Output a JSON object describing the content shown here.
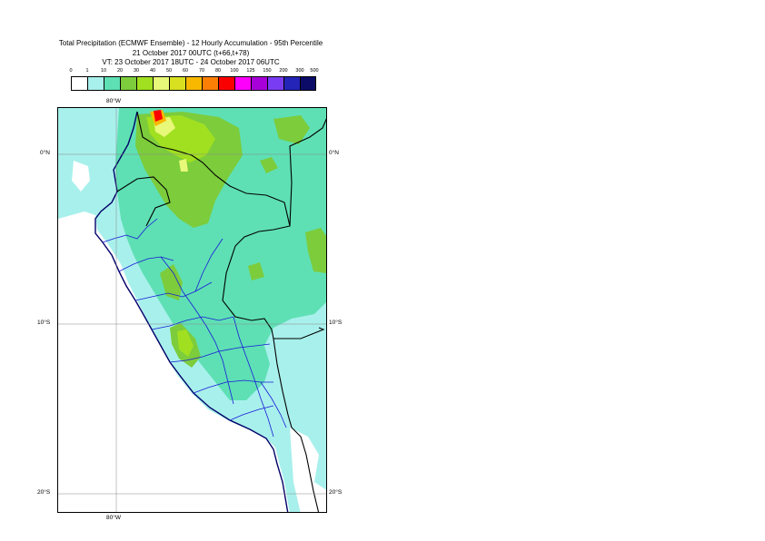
{
  "header": {
    "line1": "Total Precipitation (ECMWF Ensemble) - 12 Hourly Accumulation - 95th Percentile",
    "line2": "21 October 2017 00UTC (t+66,t+78)",
    "line3": "VT: 23 October 2017 18UTC - 24 October 2017 06UTC"
  },
  "colorbar": {
    "labels": [
      "0",
      "1",
      "10",
      "20",
      "30",
      "40",
      "50",
      "60",
      "70",
      "80",
      "100",
      "125",
      "150",
      "200",
      "300",
      "500"
    ],
    "colors": [
      "#ffffff",
      "#a8f0ec",
      "#5ee0b4",
      "#7ccc3c",
      "#a0e020",
      "#e8f878",
      "#d8e020",
      "#f8b800",
      "#fb7f05",
      "#fb0000",
      "#fc00fc",
      "#a800d8",
      "#7a3cf2",
      "#2424b8",
      "#0c0c68"
    ]
  },
  "map": {
    "lon_label_top": "80°W",
    "lon_label_bottom": "80°W",
    "lat_labels": [
      "0°N",
      "10°S",
      "20°S"
    ],
    "colors": {
      "ocean": "#ffffff",
      "light": "#a8f0ec",
      "medium": "#5ee0b4",
      "green": "#7ccc3c",
      "yellowgreen": "#a0e020",
      "pale": "#e8f878",
      "orange": "#f8b800",
      "red": "#fb0000",
      "coast": "#000068",
      "borders": "#000000",
      "regions": "#1a1ad8",
      "grid": "#888888"
    }
  }
}
